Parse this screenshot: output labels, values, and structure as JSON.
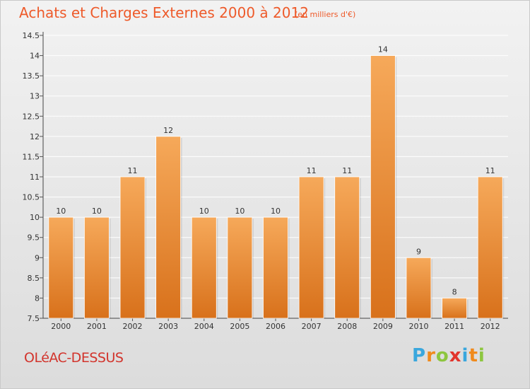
{
  "title": "Achats et Charges Externes 2000 à 2012",
  "subtitle": "(en milliers d'€)",
  "commune": "OLéAC-DESSUS",
  "logo": {
    "letters": [
      "P",
      "r",
      "o",
      "x",
      "i",
      "t",
      "i"
    ],
    "colors": [
      "#3aa7dd",
      "#f08a1c",
      "#8dc63f",
      "#e2342c",
      "#3aa7dd",
      "#f08a1c",
      "#8dc63f"
    ]
  },
  "colors": {
    "bar_top": "#f6a95a",
    "bar_bottom": "#d8711b",
    "title": "#ee5a2a",
    "commune": "#d2342c"
  },
  "chart_data": {
    "type": "bar",
    "categories": [
      "2000",
      "2001",
      "2002",
      "2003",
      "2004",
      "2005",
      "2006",
      "2007",
      "2008",
      "2009",
      "2010",
      "2011",
      "2012"
    ],
    "values": [
      10,
      10,
      11,
      12,
      10,
      10,
      10,
      11,
      11,
      14,
      9,
      8,
      11
    ],
    "value_labels": [
      "10",
      "10",
      "11",
      "12",
      "10",
      "10",
      "10",
      "11",
      "11",
      "14",
      "9",
      "8",
      "11"
    ],
    "yticks": [
      7.5,
      8,
      8.5,
      9,
      9.5,
      10,
      10.5,
      11,
      11.5,
      12,
      12.5,
      13,
      13.5,
      14,
      14.5
    ],
    "ytick_labels": [
      "7.5",
      "8",
      "8.5",
      "9",
      "9.5",
      "10",
      "10.5",
      "11",
      "11.5",
      "12",
      "12.5",
      "13",
      "13.5",
      "14",
      "14.5"
    ],
    "ylim": [
      7.5,
      14.5
    ],
    "grid": true
  }
}
